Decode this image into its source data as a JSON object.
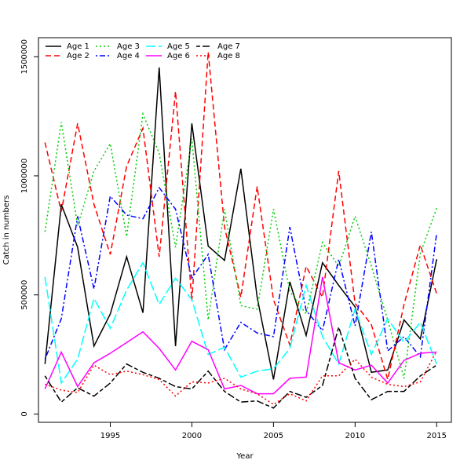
{
  "chart_data": {
    "type": "line",
    "xlabel": "Year",
    "ylabel": "Catch in numbers",
    "xlim": [
      1990.6,
      2015.9
    ],
    "ylim": [
      -35000,
      1580000
    ],
    "x_ticks": [
      1995,
      2000,
      2005,
      2010,
      2015
    ],
    "y_ticks": [
      0,
      500000,
      1000000,
      1500000
    ],
    "grid": false,
    "legend_position": "top-left",
    "x": [
      1991,
      1992,
      1993,
      1994,
      1995,
      1996,
      1997,
      1998,
      1999,
      2000,
      2001,
      2002,
      2003,
      2004,
      2005,
      2006,
      2007,
      2008,
      2009,
      2010,
      2011,
      2012,
      2013,
      2014,
      2015
    ],
    "series": [
      {
        "name": "Age 1",
        "color": "#000000",
        "dash": "solid",
        "values": [
          210000,
          880000,
          700000,
          285000,
          420000,
          660000,
          425000,
          1455000,
          285000,
          1220000,
          705000,
          645000,
          1030000,
          490000,
          145000,
          555000,
          330000,
          635000,
          540000,
          450000,
          175000,
          185000,
          395000,
          315000,
          650000
        ]
      },
      {
        "name": "Age 2",
        "color": "#ff0000",
        "dash": "dashed",
        "values": [
          1140000,
          850000,
          1220000,
          880000,
          670000,
          1040000,
          1200000,
          660000,
          1355000,
          475000,
          1520000,
          785000,
          490000,
          955000,
          480000,
          290000,
          620000,
          490000,
          1020000,
          465000,
          375000,
          145000,
          460000,
          710000,
          505000
        ]
      },
      {
        "name": "Age 3",
        "color": "#00cd00",
        "dash": "dotted",
        "values": [
          765000,
          1225000,
          790000,
          1020000,
          1135000,
          745000,
          1260000,
          1095000,
          700000,
          1155000,
          395000,
          860000,
          455000,
          440000,
          860000,
          515000,
          420000,
          720000,
          620000,
          830000,
          620000,
          395000,
          150000,
          675000,
          865000
        ]
      },
      {
        "name": "Age 4",
        "color": "#0000ff",
        "dash": "dotdash",
        "values": [
          230000,
          400000,
          830000,
          525000,
          915000,
          835000,
          820000,
          950000,
          860000,
          570000,
          670000,
          270000,
          385000,
          340000,
          325000,
          785000,
          435000,
          350000,
          650000,
          370000,
          765000,
          265000,
          325000,
          240000,
          760000
        ]
      },
      {
        "name": "Age 5",
        "color": "#00ffff",
        "dash": "longdash",
        "values": [
          575000,
          130000,
          230000,
          485000,
          360000,
          520000,
          635000,
          460000,
          570000,
          480000,
          250000,
          280000,
          155000,
          180000,
          190000,
          275000,
          540000,
          325000,
          210000,
          440000,
          250000,
          400000,
          300000,
          385000,
          210000
        ]
      },
      {
        "name": "Age 6",
        "color": "#ff00ff",
        "dash": "solid",
        "values": [
          105000,
          260000,
          115000,
          215000,
          255000,
          300000,
          345000,
          275000,
          185000,
          305000,
          270000,
          105000,
          120000,
          85000,
          85000,
          150000,
          155000,
          575000,
          215000,
          185000,
          205000,
          130000,
          225000,
          255000,
          260000
        ]
      },
      {
        "name": "Age 7",
        "color": "#000000",
        "dash": "twodash",
        "values": [
          160000,
          50000,
          110000,
          75000,
          130000,
          210000,
          175000,
          150000,
          115000,
          105000,
          180000,
          95000,
          50000,
          55000,
          25000,
          95000,
          70000,
          120000,
          365000,
          150000,
          60000,
          95000,
          95000,
          160000,
          205000
        ]
      },
      {
        "name": "Age 8",
        "color": "#ff0000",
        "dash": "dotted",
        "values": [
          125000,
          100000,
          90000,
          205000,
          165000,
          180000,
          165000,
          145000,
          75000,
          135000,
          130000,
          150000,
          105000,
          85000,
          40000,
          85000,
          55000,
          160000,
          160000,
          230000,
          155000,
          125000,
          115000,
          135000,
          265000
        ]
      }
    ]
  }
}
